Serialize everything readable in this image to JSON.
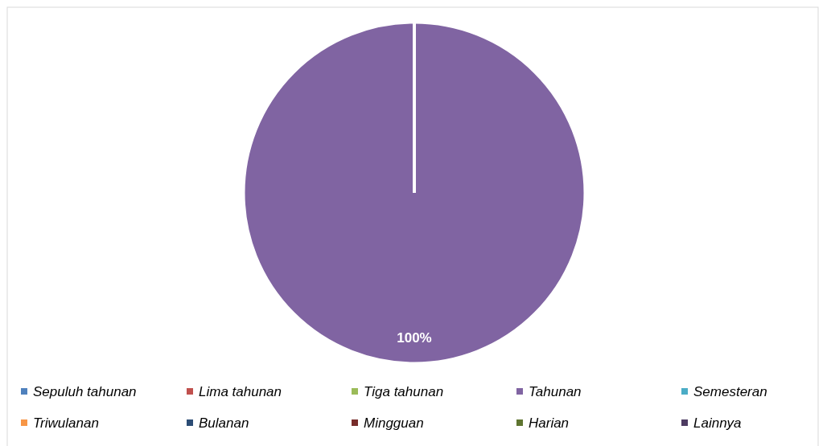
{
  "chart_data": {
    "type": "pie",
    "categories": [
      "Sepuluh tahunan",
      "Lima tahunan",
      "Tiga tahunan",
      "Tahunan",
      "Semesteran",
      "Triwulanan",
      "Bulanan",
      "Mingguan",
      "Harian",
      "Lainnya"
    ],
    "values": [
      0,
      0,
      0,
      100,
      0,
      0,
      0,
      0,
      0,
      0
    ],
    "colors": [
      "#4f81bd",
      "#c0504d",
      "#9bbb59",
      "#8064a2",
      "#4bacc6",
      "#f79646",
      "#2c4d75",
      "#772c2a",
      "#5f7530",
      "#4d3b62"
    ],
    "value_labels": [
      null,
      null,
      null,
      "100%",
      null,
      null,
      null,
      null,
      null,
      null
    ],
    "legend": "bottom"
  }
}
